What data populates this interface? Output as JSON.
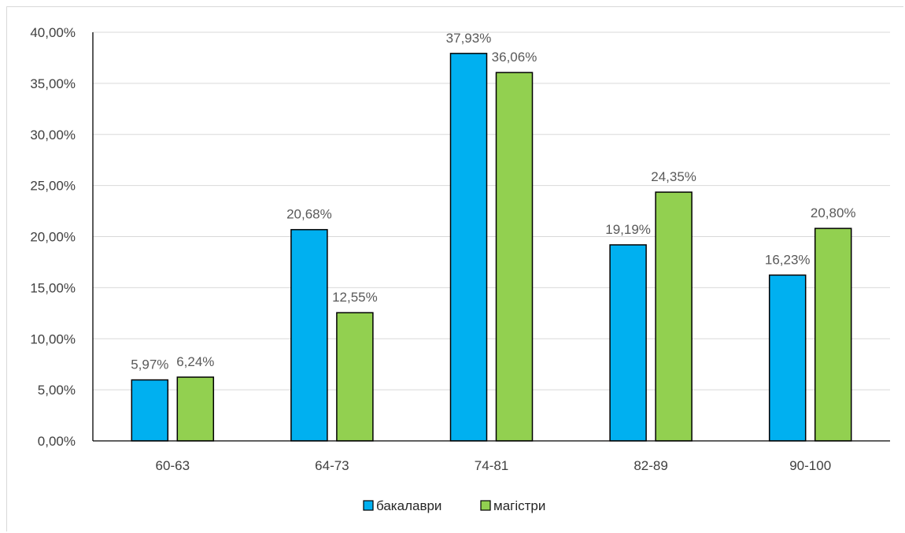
{
  "chart_data": {
    "type": "bar",
    "categories": [
      "60-63",
      "64-73",
      "74-81",
      "82-89",
      "90-100"
    ],
    "series": [
      {
        "name": "бакалаври",
        "values": [
          5.97,
          20.68,
          37.93,
          19.19,
          16.23
        ],
        "labels": [
          "5,97%",
          "20,68%",
          "37,93%",
          "19,19%",
          "16,23%"
        ],
        "color": "#00b0f0"
      },
      {
        "name": "магістри",
        "values": [
          6.24,
          12.55,
          36.06,
          24.35,
          20.8
        ],
        "labels": [
          "6,24%",
          "12,55%",
          "36,06%",
          "24,35%",
          "20,80%"
        ],
        "color": "#92d050"
      }
    ],
    "ylim": [
      0,
      40
    ],
    "yticks": [
      0,
      5,
      10,
      15,
      20,
      25,
      30,
      35,
      40
    ],
    "ytick_labels": [
      "0,00%",
      "5,00%",
      "10,00%",
      "15,00%",
      "20,00%",
      "25,00%",
      "30,00%",
      "35,00%",
      "40,00%"
    ],
    "grid": true,
    "legend_position": "bottom",
    "title": "",
    "xlabel": "",
    "ylabel": ""
  }
}
